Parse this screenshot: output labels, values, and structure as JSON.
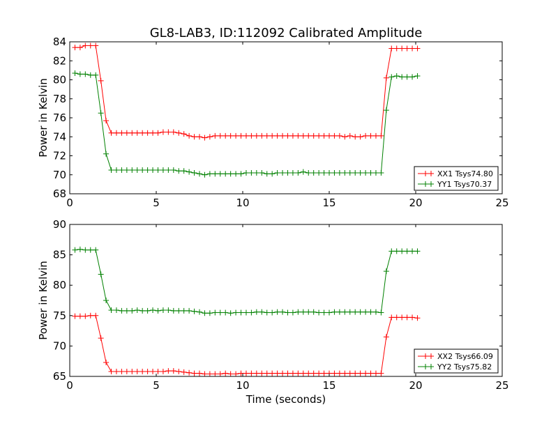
{
  "title": "GL8-LAB3, ID:112092 Calibrated Amplitude",
  "xlabel": "Time (seconds)",
  "chart_data": [
    {
      "type": "line",
      "ylabel": "Power in Kelvin",
      "xlim": [
        0,
        25
      ],
      "ylim": [
        68,
        84
      ],
      "xticks": [
        0,
        5,
        10,
        15,
        20,
        25
      ],
      "yticks": [
        68,
        70,
        72,
        74,
        76,
        78,
        80,
        82,
        84
      ],
      "legend_position": "lower-right",
      "x": [
        0.3,
        0.6,
        0.9,
        1.2,
        1.5,
        1.8,
        2.1,
        2.4,
        2.7,
        3.0,
        3.3,
        3.6,
        3.9,
        4.2,
        4.5,
        4.8,
        5.1,
        5.4,
        5.7,
        6.0,
        6.3,
        6.6,
        6.9,
        7.2,
        7.5,
        7.8,
        8.1,
        8.4,
        8.7,
        9.0,
        9.3,
        9.6,
        9.9,
        10.2,
        10.5,
        10.8,
        11.1,
        11.4,
        11.7,
        12.0,
        12.3,
        12.6,
        12.9,
        13.2,
        13.5,
        13.8,
        14.1,
        14.4,
        14.7,
        15.0,
        15.3,
        15.6,
        15.9,
        16.2,
        16.5,
        16.8,
        17.1,
        17.4,
        17.7,
        18.0,
        18.3,
        18.6,
        18.9,
        19.2,
        19.5,
        19.8,
        20.1
      ],
      "series": [
        {
          "name": "XX1 Tsys74.80",
          "color": "#ff0000",
          "values": [
            83.4,
            83.4,
            83.6,
            83.6,
            83.6,
            79.9,
            75.7,
            74.4,
            74.4,
            74.4,
            74.4,
            74.4,
            74.4,
            74.4,
            74.4,
            74.4,
            74.4,
            74.5,
            74.5,
            74.5,
            74.4,
            74.3,
            74.1,
            74.0,
            74.0,
            73.9,
            74.0,
            74.1,
            74.1,
            74.1,
            74.1,
            74.1,
            74.1,
            74.1,
            74.1,
            74.1,
            74.1,
            74.1,
            74.1,
            74.1,
            74.1,
            74.1,
            74.1,
            74.1,
            74.1,
            74.1,
            74.1,
            74.1,
            74.1,
            74.1,
            74.1,
            74.1,
            74.0,
            74.1,
            74.0,
            74.0,
            74.1,
            74.1,
            74.1,
            74.1,
            80.2,
            83.3,
            83.3,
            83.3,
            83.3,
            83.3,
            83.3
          ]
        },
        {
          "name": "YY1 Tsys70.37",
          "color": "#008000",
          "values": [
            80.7,
            80.6,
            80.6,
            80.5,
            80.5,
            76.5,
            72.2,
            70.5,
            70.5,
            70.5,
            70.5,
            70.5,
            70.5,
            70.5,
            70.5,
            70.5,
            70.5,
            70.5,
            70.5,
            70.5,
            70.4,
            70.4,
            70.3,
            70.2,
            70.1,
            70.0,
            70.1,
            70.1,
            70.1,
            70.1,
            70.1,
            70.1,
            70.1,
            70.2,
            70.2,
            70.2,
            70.2,
            70.1,
            70.1,
            70.2,
            70.2,
            70.2,
            70.2,
            70.2,
            70.3,
            70.2,
            70.2,
            70.2,
            70.2,
            70.2,
            70.2,
            70.2,
            70.2,
            70.2,
            70.2,
            70.2,
            70.2,
            70.2,
            70.2,
            70.2,
            76.8,
            80.3,
            80.4,
            80.3,
            80.3,
            80.3,
            80.4
          ]
        }
      ]
    },
    {
      "type": "line",
      "ylabel": "Power in Kelvin",
      "xlim": [
        0,
        25
      ],
      "ylim": [
        65,
        90
      ],
      "xticks": [
        0,
        5,
        10,
        15,
        20,
        25
      ],
      "yticks": [
        65,
        70,
        75,
        80,
        85,
        90
      ],
      "legend_position": "lower-right",
      "x": [
        0.3,
        0.6,
        0.9,
        1.2,
        1.5,
        1.8,
        2.1,
        2.4,
        2.7,
        3.0,
        3.3,
        3.6,
        3.9,
        4.2,
        4.5,
        4.8,
        5.1,
        5.4,
        5.7,
        6.0,
        6.3,
        6.6,
        6.9,
        7.2,
        7.5,
        7.8,
        8.1,
        8.4,
        8.7,
        9.0,
        9.3,
        9.6,
        9.9,
        10.2,
        10.5,
        10.8,
        11.1,
        11.4,
        11.7,
        12.0,
        12.3,
        12.6,
        12.9,
        13.2,
        13.5,
        13.8,
        14.1,
        14.4,
        14.7,
        15.0,
        15.3,
        15.6,
        15.9,
        16.2,
        16.5,
        16.8,
        17.1,
        17.4,
        17.7,
        18.0,
        18.3,
        18.6,
        18.9,
        19.2,
        19.5,
        19.8,
        20.1
      ],
      "series": [
        {
          "name": "XX2 Tsys66.09",
          "color": "#ff0000",
          "values": [
            74.9,
            74.9,
            74.9,
            75.0,
            75.0,
            71.3,
            67.3,
            65.8,
            65.8,
            65.8,
            65.8,
            65.8,
            65.8,
            65.8,
            65.8,
            65.8,
            65.8,
            65.8,
            65.9,
            65.9,
            65.8,
            65.7,
            65.6,
            65.5,
            65.5,
            65.4,
            65.4,
            65.4,
            65.4,
            65.5,
            65.4,
            65.4,
            65.5,
            65.5,
            65.5,
            65.5,
            65.5,
            65.5,
            65.5,
            65.5,
            65.5,
            65.5,
            65.5,
            65.5,
            65.5,
            65.5,
            65.5,
            65.5,
            65.5,
            65.5,
            65.5,
            65.5,
            65.5,
            65.5,
            65.5,
            65.5,
            65.5,
            65.5,
            65.5,
            65.5,
            71.5,
            74.7,
            74.7,
            74.7,
            74.7,
            74.7,
            74.6
          ]
        },
        {
          "name": "YY2 Tsys75.82",
          "color": "#008000",
          "values": [
            85.8,
            85.9,
            85.8,
            85.8,
            85.8,
            81.8,
            77.5,
            75.9,
            75.9,
            75.8,
            75.8,
            75.8,
            75.9,
            75.8,
            75.8,
            75.9,
            75.8,
            75.9,
            75.9,
            75.8,
            75.8,
            75.8,
            75.8,
            75.7,
            75.6,
            75.4,
            75.4,
            75.5,
            75.5,
            75.5,
            75.4,
            75.5,
            75.5,
            75.5,
            75.5,
            75.6,
            75.6,
            75.5,
            75.5,
            75.6,
            75.6,
            75.5,
            75.5,
            75.6,
            75.6,
            75.6,
            75.6,
            75.5,
            75.5,
            75.5,
            75.6,
            75.6,
            75.6,
            75.6,
            75.6,
            75.6,
            75.6,
            75.6,
            75.6,
            75.5,
            82.3,
            85.6,
            85.6,
            85.6,
            85.6,
            85.6,
            85.6
          ]
        }
      ]
    }
  ]
}
